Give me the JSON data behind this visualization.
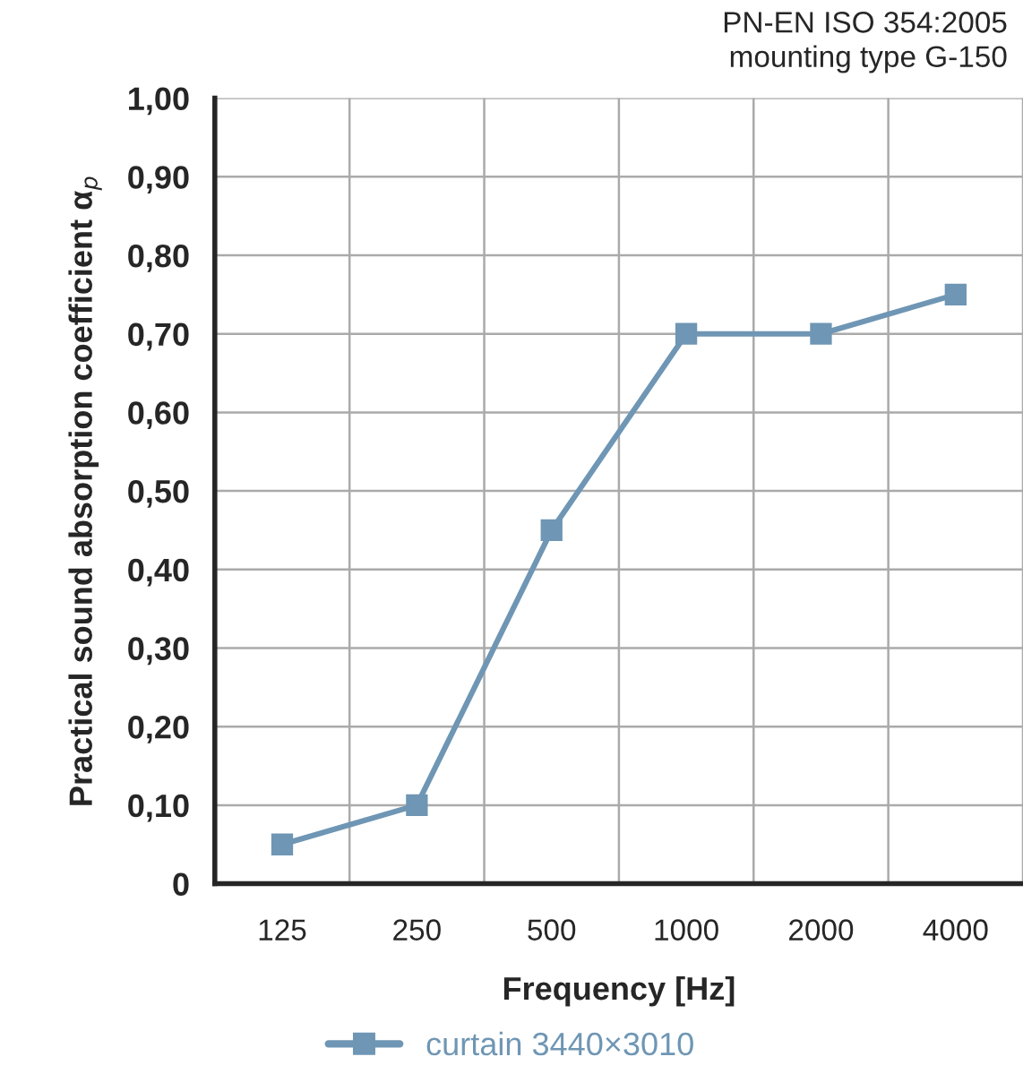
{
  "chart_data": {
    "type": "line",
    "annotations": [
      "PN-EN ISO 354:2005\nmounting type G-150"
    ],
    "xlabel": "Frequency [Hz]",
    "ylabel": "Practical sound absorption coefficient α$_{p}$",
    "categories": [
      "125",
      "250",
      "500",
      "1000",
      "2000",
      "4000"
    ],
    "series": [
      {
        "name": "curtain 3440×3010",
        "color": "#6f96b4",
        "values": [
          0.05,
          0.1,
          0.45,
          0.7,
          0.7,
          0.75
        ]
      }
    ],
    "ylim": [
      0,
      1.0
    ],
    "yticks": [
      {
        "value": 0,
        "label": "0"
      },
      {
        "value": 0.1,
        "label": "0,10"
      },
      {
        "value": 0.2,
        "label": "0,20"
      },
      {
        "value": 0.3,
        "label": "0,30"
      },
      {
        "value": 0.4,
        "label": "0,40"
      },
      {
        "value": 0.5,
        "label": "0,50"
      },
      {
        "value": 0.6,
        "label": "0,60"
      },
      {
        "value": 0.7,
        "label": "0,70"
      },
      {
        "value": 0.8,
        "label": "0,80"
      },
      {
        "value": 0.9,
        "label": "0,90"
      },
      {
        "value": 1.0,
        "label": "1,00"
      }
    ],
    "grid": true,
    "legend": "bottom",
    "marker": "square",
    "line_style": "solid"
  }
}
